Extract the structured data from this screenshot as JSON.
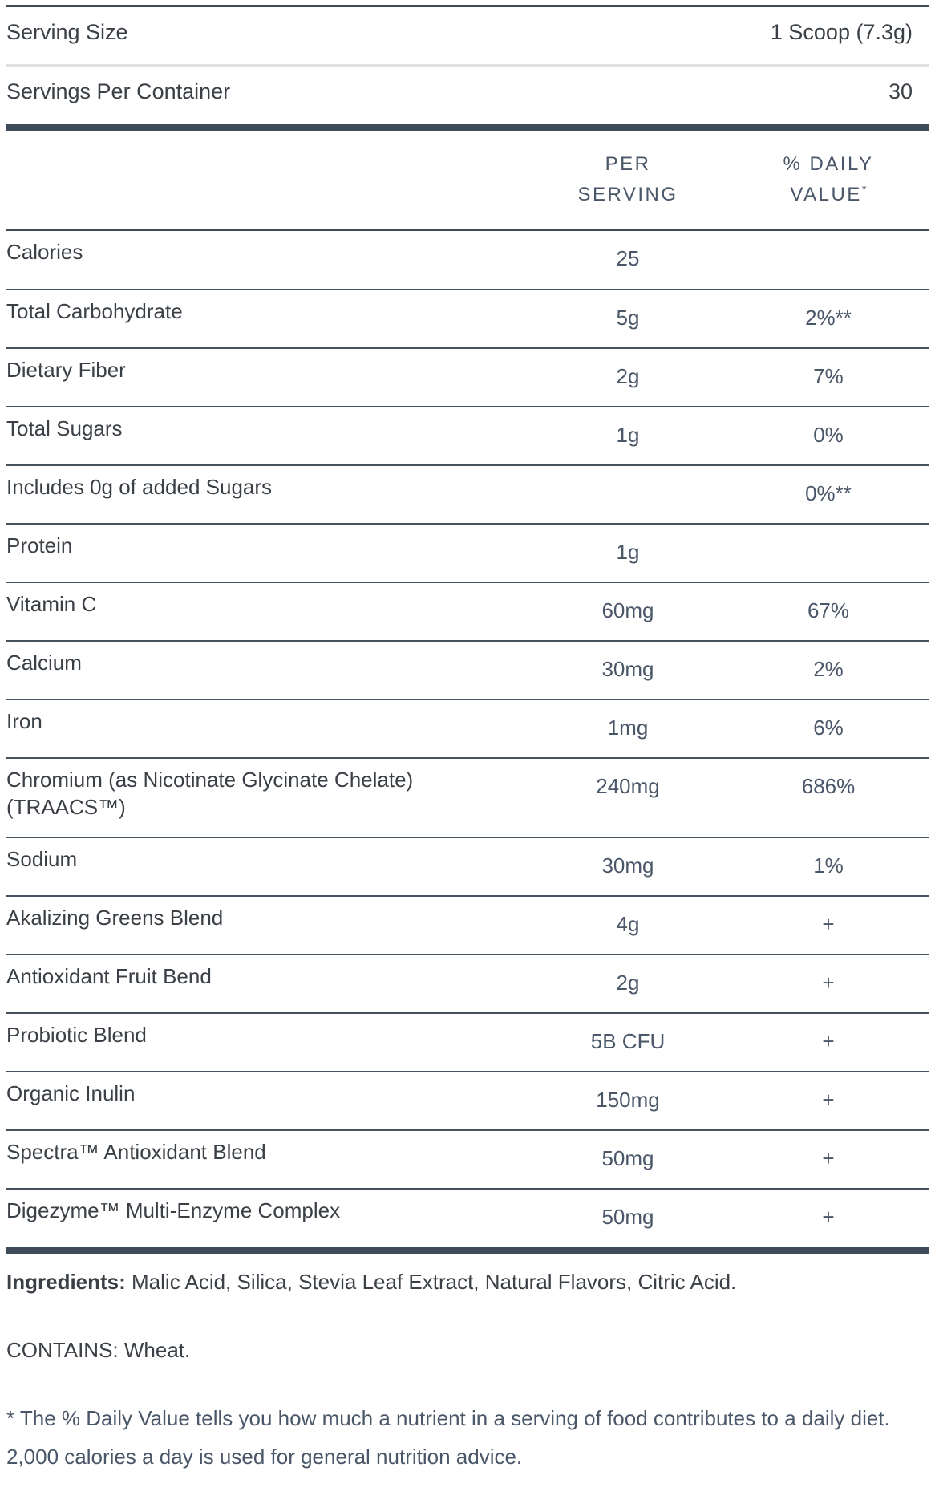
{
  "header": {
    "serving_size_label": "Serving Size",
    "serving_size_value": "1 Scoop (7.3g)",
    "servings_per_container_label": "Servings Per Container",
    "servings_per_container_value": "30"
  },
  "table": {
    "col_per_serving_line1": "PER",
    "col_per_serving_line2": "SERVING",
    "col_daily_value_line1": "% DAILY",
    "col_daily_value_line2": "VALUE",
    "col_daily_value_asterisk": "*",
    "rows": [
      {
        "label": "Calories",
        "per_serving": "25",
        "daily_value": ""
      },
      {
        "label": "Total Carbohydrate",
        "per_serving": "5g",
        "daily_value": "2%**"
      },
      {
        "label": "Dietary Fiber",
        "per_serving": "2g",
        "daily_value": "7%"
      },
      {
        "label": "Total Sugars",
        "per_serving": "1g",
        "daily_value": "0%"
      },
      {
        "label": "Includes 0g of added Sugars",
        "per_serving": "",
        "daily_value": "0%**"
      },
      {
        "label": "Protein",
        "per_serving": "1g",
        "daily_value": ""
      },
      {
        "label": "Vitamin C",
        "per_serving": "60mg",
        "daily_value": "67%"
      },
      {
        "label": "Calcium",
        "per_serving": "30mg",
        "daily_value": "2%"
      },
      {
        "label": "Iron",
        "per_serving": "1mg",
        "daily_value": "6%"
      },
      {
        "label": "Chromium (as Nicotinate Glycinate Chelate)",
        "label_line2": "(TRAACS™)",
        "per_serving": "240mg",
        "daily_value": "686%"
      },
      {
        "label": "Sodium",
        "per_serving": "30mg",
        "daily_value": "1%"
      },
      {
        "label": "Akalizing Greens Blend",
        "per_serving": "4g",
        "daily_value": "+"
      },
      {
        "label": "Antioxidant Fruit Bend",
        "per_serving": "2g",
        "daily_value": "+"
      },
      {
        "label": "Probiotic Blend",
        "per_serving": "5B CFU",
        "daily_value": "+"
      },
      {
        "label": "Organic Inulin",
        "per_serving": "150mg",
        "daily_value": "+"
      },
      {
        "label": "Spectra™ Antioxidant Blend",
        "per_serving": "50mg",
        "daily_value": "+"
      },
      {
        "label": "Digezyme™ Multi-Enzyme Complex",
        "per_serving": "50mg",
        "daily_value": "+"
      }
    ]
  },
  "footer": {
    "ingredients_label": "Ingredients:",
    "ingredients_text": " Malic Acid, Silica, Stevia Leaf Extract, Natural Flavors, Citric Acid.",
    "contains": "CONTAINS: Wheat.",
    "daily_value_note": "* The % Daily Value tells you how much a nutrient in a serving of food contributes to a daily diet. 2,000 calories a day is used for general nutrition advice."
  },
  "colors": {
    "text-dark": "#3a4046",
    "text-slate": "#4a5769",
    "rule-dark": "#3e4b58",
    "rule-light": "#e0e0e0"
  }
}
